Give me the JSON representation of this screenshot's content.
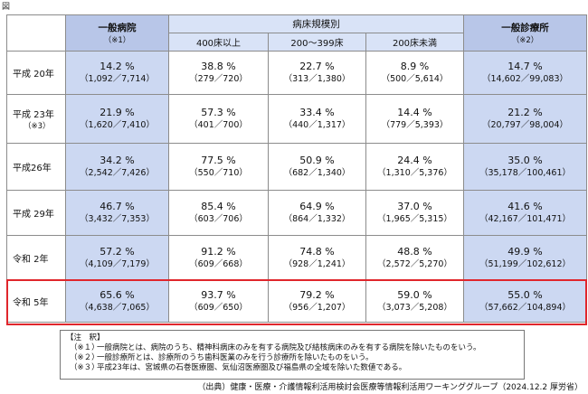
{
  "figure_label": "図",
  "header": {
    "general_hospital": "一般病院",
    "general_hospital_note": "（※1）",
    "bed_scale": "病床規模別",
    "bed_400_plus": "400床以上",
    "bed_200_399": "200～399床",
    "bed_under_200": "200床未満",
    "general_clinic": "一般診療所",
    "general_clinic_note": "（※2）"
  },
  "rows": [
    {
      "label": "平成 20年",
      "note": "",
      "hospital": {
        "pct": "14.2 %",
        "frac": "（1,092／7,714）"
      },
      "b400": {
        "pct": "38.8 %",
        "frac": "（279／720）"
      },
      "b200": {
        "pct": "22.7 %",
        "frac": "（313／1,380）"
      },
      "bu200": {
        "pct": "8.9 %",
        "frac": "（500／5,614）"
      },
      "clinic": {
        "pct": "14.7 %",
        "frac": "（14,602／99,083）"
      }
    },
    {
      "label": "平成 23年",
      "note": "（※3）",
      "hospital": {
        "pct": "21.9 %",
        "frac": "（1,620／7,410）"
      },
      "b400": {
        "pct": "57.3 %",
        "frac": "（401／700）"
      },
      "b200": {
        "pct": "33.4 %",
        "frac": "（440／1,317）"
      },
      "bu200": {
        "pct": "14.4 %",
        "frac": "（779／5,393）"
      },
      "clinic": {
        "pct": "21.2 %",
        "frac": "（20,797／98,004）"
      }
    },
    {
      "label": "平成26年",
      "note": "",
      "hospital": {
        "pct": "34.2 %",
        "frac": "（2,542／7,426）"
      },
      "b400": {
        "pct": "77.5 %",
        "frac": "（550／710）"
      },
      "b200": {
        "pct": "50.9 %",
        "frac": "（682／1,340）"
      },
      "bu200": {
        "pct": "24.4 %",
        "frac": "（1,310／5,376）"
      },
      "clinic": {
        "pct": "35.0 %",
        "frac": "（35,178／100,461）"
      }
    },
    {
      "label": "平成 29年",
      "note": "",
      "hospital": {
        "pct": "46.7 %",
        "frac": "（3,432／7,353）"
      },
      "b400": {
        "pct": "85.4 %",
        "frac": "（603／706）"
      },
      "b200": {
        "pct": "64.9 %",
        "frac": "（864／1,332）"
      },
      "bu200": {
        "pct": "37.0 %",
        "frac": "（1,965／5,315）"
      },
      "clinic": {
        "pct": "41.6 %",
        "frac": "（42,167／101,471）"
      }
    },
    {
      "label": "令和 2年",
      "note": "",
      "hospital": {
        "pct": "57.2 %",
        "frac": "（4,109／7,179）"
      },
      "b400": {
        "pct": "91.2 %",
        "frac": "（609／668）"
      },
      "b200": {
        "pct": "74.8 %",
        "frac": "（928／1,241）"
      },
      "bu200": {
        "pct": "48.8 %",
        "frac": "（2,572／5,270）"
      },
      "clinic": {
        "pct": "49.9 %",
        "frac": "（51,199／102,612）"
      }
    },
    {
      "label": "令和 5年",
      "note": "",
      "hospital": {
        "pct": "65.6 %",
        "frac": "（4,638／7,065）"
      },
      "b400": {
        "pct": "93.7 %",
        "frac": "（609／650）"
      },
      "b200": {
        "pct": "79.2 %",
        "frac": "（956／1,207）"
      },
      "bu200": {
        "pct": "59.0 %",
        "frac": "（3,073／5,208）"
      },
      "clinic": {
        "pct": "55.0 %",
        "frac": "（57,662／104,894）"
      }
    }
  ],
  "notes": {
    "title": "【注　釈】",
    "items": [
      {
        "mark": "（※１）",
        "text": "一般病院とは、病院のうち、精神科病床のみを有する病院及び結核病床のみを有する病院を除いたものをいう。"
      },
      {
        "mark": "（※２）",
        "text": "一般診療所とは、診療所のうち歯科医業のみを行う診療所を除いたものをいう。"
      },
      {
        "mark": "（※３）",
        "text": "平成23年は、宮城県の石巻医療圏、気仙沼医療圏及び福島県の全域を除いた数値である。"
      }
    ]
  },
  "source": "（出典）健康・医療・介護情報利活用検討会医療等情報利活用ワーキンググループ（2024.12.2 厚労省）",
  "colors": {
    "highlight": "#e0262c",
    "header_blue": "#b8c6e8",
    "cell_blue": "#ccd8f2"
  }
}
